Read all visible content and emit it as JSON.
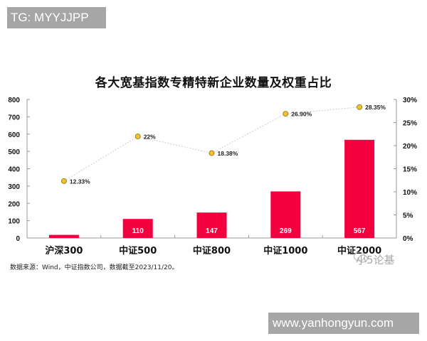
{
  "overlay": {
    "tag_text": "TG: MYYJJPP",
    "site_text": "www.yanhongyun.com",
    "watermark_text": "小5论基"
  },
  "footer": {
    "source_note": "数据来源：Wind，中证指数公司，数据截至2023/11/20。"
  },
  "colors": {
    "bar": "#f5003f",
    "marker_fill": "#f2c230",
    "marker_stroke": "#8a6d00",
    "line": "#cccccc",
    "axis": "#999999"
  },
  "chart_data": {
    "type": "bar+line",
    "title": "各大宽基指数专精特新企业数量及权重占比",
    "categories": [
      "沪深300",
      "中证500",
      "中证800",
      "中证1000",
      "中证2000"
    ],
    "series": [
      {
        "name": "专精特新企业数量",
        "type": "bar",
        "axis": "left",
        "values": [
          18,
          110,
          147,
          269,
          567
        ],
        "labels": [
          "",
          "110",
          "147",
          "269",
          "567"
        ]
      },
      {
        "name": "权重占比",
        "type": "line",
        "axis": "right",
        "values": [
          12.33,
          22.0,
          18.38,
          26.9,
          28.35
        ],
        "labels": [
          "12.33%",
          "22%",
          "18.38%",
          "26.90%",
          "28.35%"
        ]
      }
    ],
    "y_left": {
      "min": 0,
      "max": 800,
      "ticks": [
        "0",
        "100",
        "200",
        "300",
        "400",
        "500",
        "600",
        "700",
        "800"
      ]
    },
    "y_right": {
      "min": 0,
      "max": 30,
      "ticks": [
        "0%",
        "5%",
        "10%",
        "15%",
        "20%",
        "25%",
        "30%"
      ]
    },
    "grid": false,
    "legend": "none"
  }
}
